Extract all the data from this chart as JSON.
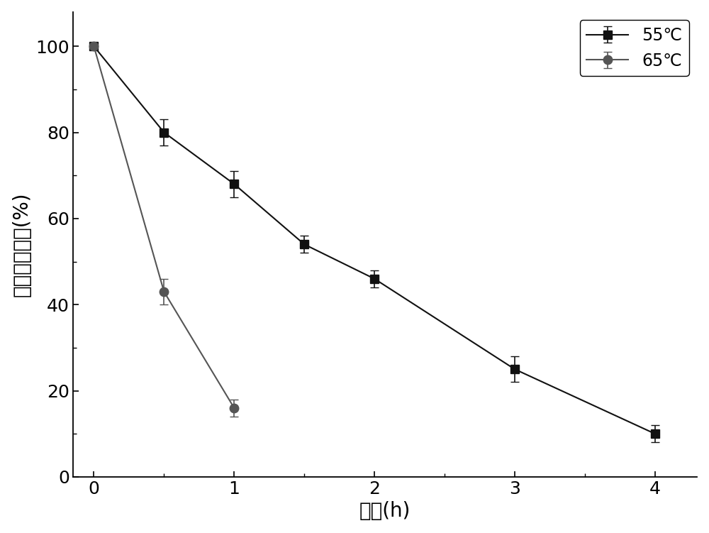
{
  "series": [
    {
      "label": "55℃",
      "x": [
        0,
        0.5,
        1,
        1.5,
        2,
        3,
        4
      ],
      "y": [
        100,
        80,
        68,
        54,
        46,
        25,
        10
      ],
      "yerr": [
        0,
        3,
        3,
        2,
        2,
        3,
        2
      ],
      "color": "#111111",
      "marker": "s",
      "markersize": 8,
      "linewidth": 1.5
    },
    {
      "label": "65℃",
      "x": [
        0,
        0.5,
        1
      ],
      "y": [
        100,
        43,
        16
      ],
      "yerr": [
        0,
        3,
        2
      ],
      "color": "#555555",
      "marker": "o",
      "markersize": 9,
      "linewidth": 1.5
    }
  ],
  "xlabel": "时间(h)",
  "ylabel": "残存相对酶活(%)",
  "xlim": [
    -0.15,
    4.3
  ],
  "ylim": [
    0,
    108
  ],
  "xticks_major": [
    0,
    1,
    2,
    3,
    4
  ],
  "xticks_minor": [
    0.5,
    1.5,
    2.5,
    3.5
  ],
  "yticks_major": [
    0,
    20,
    40,
    60,
    80,
    100
  ],
  "yticks_minor": [
    10,
    30,
    50,
    70,
    90
  ],
  "legend_loc": "upper right",
  "figsize": [
    10.0,
    7.51
  ],
  "dpi": 100,
  "background_color": "#ffffff",
  "axis_linewidth": 1.3,
  "capsize": 4,
  "xlabel_fontsize": 20,
  "ylabel_fontsize": 20,
  "tick_fontsize": 18,
  "legend_fontsize": 17
}
